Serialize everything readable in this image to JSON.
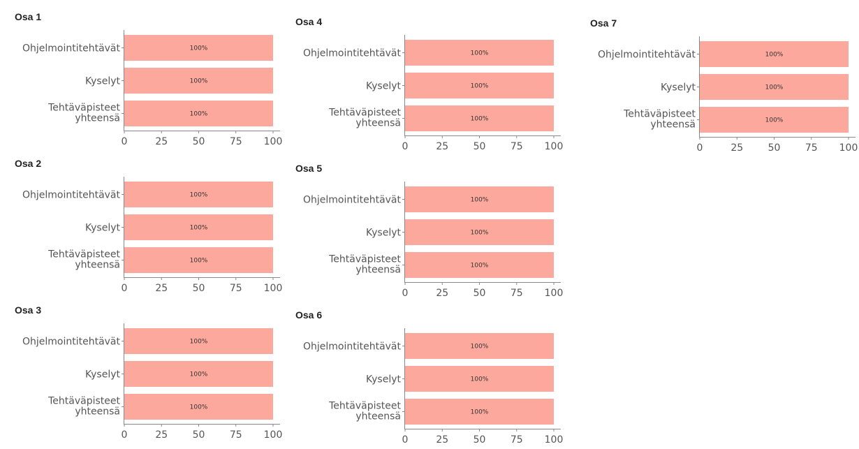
{
  "chart_data": [
    {
      "type": "bar",
      "orientation": "horizontal",
      "title": "Osa 1",
      "categories": [
        "Ohjelmointitehtävät",
        "Kyselyt",
        "Tehtäväpisteet yhteensä"
      ],
      "values": [
        100,
        100,
        100
      ],
      "value_labels": [
        "100%",
        "100%",
        "100%"
      ],
      "xlim": [
        0,
        100
      ],
      "xticks": [
        "0",
        "25",
        "50",
        "75",
        "100"
      ],
      "color": "#fda89c"
    },
    {
      "type": "bar",
      "orientation": "horizontal",
      "title": "Osa 2",
      "categories": [
        "Ohjelmointitehtävät",
        "Kyselyt",
        "Tehtäväpisteet yhteensä"
      ],
      "values": [
        100,
        100,
        100
      ],
      "value_labels": [
        "100%",
        "100%",
        "100%"
      ],
      "xlim": [
        0,
        100
      ],
      "xticks": [
        "0",
        "25",
        "50",
        "75",
        "100"
      ],
      "color": "#fda89c"
    },
    {
      "type": "bar",
      "orientation": "horizontal",
      "title": "Osa 3",
      "categories": [
        "Ohjelmointitehtävät",
        "Kyselyt",
        "Tehtäväpisteet yhteensä"
      ],
      "values": [
        100,
        100,
        100
      ],
      "value_labels": [
        "100%",
        "100%",
        "100%"
      ],
      "xlim": [
        0,
        100
      ],
      "xticks": [
        "0",
        "25",
        "50",
        "75",
        "100"
      ],
      "color": "#fda89c"
    },
    {
      "type": "bar",
      "orientation": "horizontal",
      "title": "Osa 4",
      "categories": [
        "Ohjelmointitehtävät",
        "Kyselyt",
        "Tehtäväpisteet yhteensä"
      ],
      "values": [
        100,
        100,
        100
      ],
      "value_labels": [
        "100%",
        "100%",
        "100%"
      ],
      "xlim": [
        0,
        100
      ],
      "xticks": [
        "0",
        "25",
        "50",
        "75",
        "100"
      ],
      "color": "#fda89c"
    },
    {
      "type": "bar",
      "orientation": "horizontal",
      "title": "Osa 5",
      "categories": [
        "Ohjelmointitehtävät",
        "Kyselyt",
        "Tehtäväpisteet yhteensä"
      ],
      "values": [
        100,
        100,
        100
      ],
      "value_labels": [
        "100%",
        "100%",
        "100%"
      ],
      "xlim": [
        0,
        100
      ],
      "xticks": [
        "0",
        "25",
        "50",
        "75",
        "100"
      ],
      "color": "#fda89c"
    },
    {
      "type": "bar",
      "orientation": "horizontal",
      "title": "Osa 6",
      "categories": [
        "Ohjelmointitehtävät",
        "Kyselyt",
        "Tehtäväpisteet yhteensä"
      ],
      "values": [
        100,
        100,
        100
      ],
      "value_labels": [
        "100%",
        "100%",
        "100%"
      ],
      "xlim": [
        0,
        100
      ],
      "xticks": [
        "0",
        "25",
        "50",
        "75",
        "100"
      ],
      "color": "#fda89c"
    },
    {
      "type": "bar",
      "orientation": "horizontal",
      "title": "Osa 7",
      "categories": [
        "Ohjelmointitehtävät",
        "Kyselyt",
        "Tehtäväpisteet yhteensä"
      ],
      "values": [
        100,
        100,
        100
      ],
      "value_labels": [
        "100%",
        "100%",
        "100%"
      ],
      "xlim": [
        0,
        100
      ],
      "xticks": [
        "0",
        "25",
        "50",
        "75",
        "100"
      ],
      "color": "#fda89c"
    }
  ]
}
